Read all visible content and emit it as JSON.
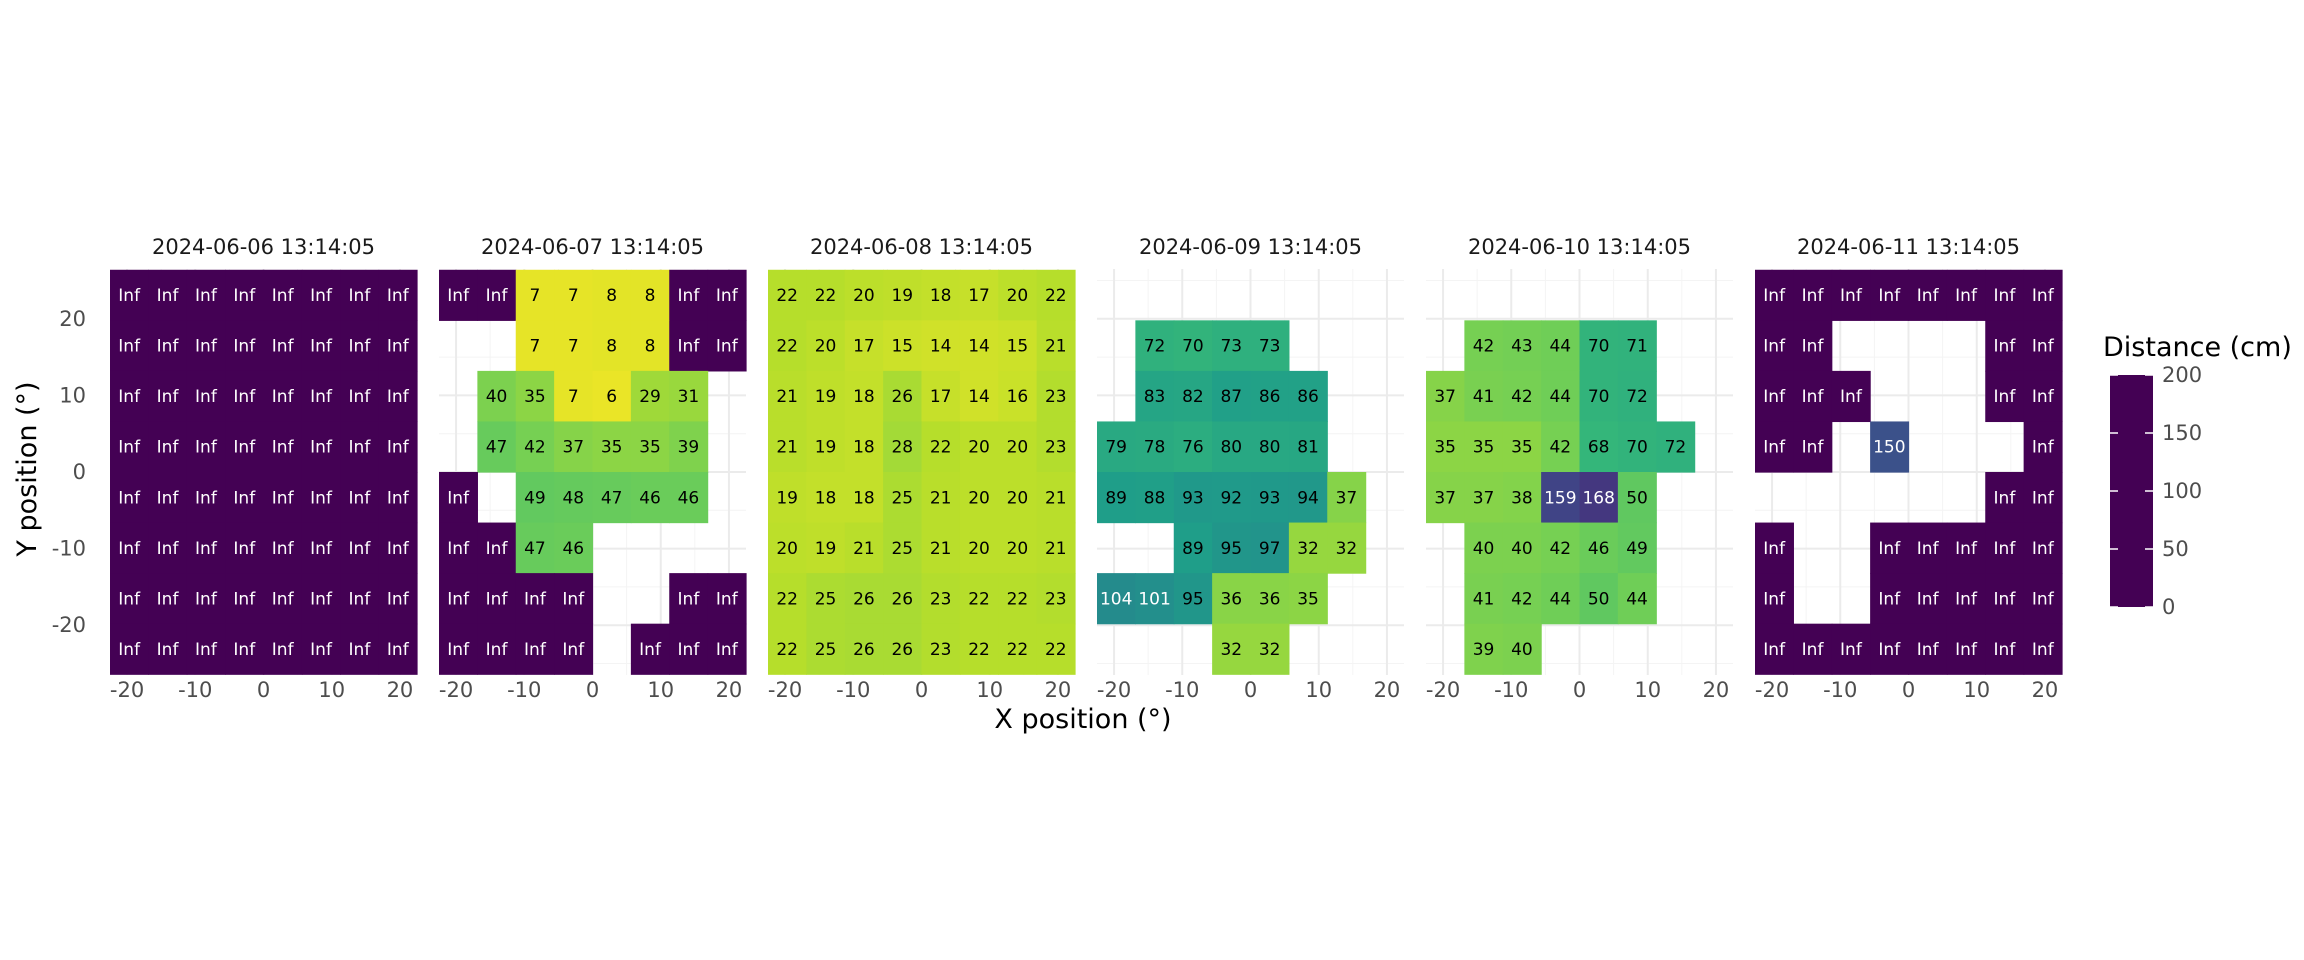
{
  "chart_data": {
    "type": "heatmap",
    "xlabel": "X position (°)",
    "ylabel": "Y position (°)",
    "xlim": [
      -22.5,
      22.5
    ],
    "ylim": [
      -26.5,
      26.5
    ],
    "x_ticks": [
      -20,
      -10,
      0,
      10,
      20
    ],
    "y_ticks": [
      20,
      10,
      0,
      -10,
      -20
    ],
    "x_tick_labels": [
      "-20",
      "-10",
      "0",
      "10",
      "20"
    ],
    "y_tick_labels": [
      "20",
      "10",
      "0",
      "-10",
      "-20"
    ],
    "x_values": [
      -19.6875,
      -14.0625,
      -8.4375,
      -2.8125,
      2.8125,
      8.4375,
      14.0625,
      19.6875
    ],
    "y_values": [
      23.1,
      16.5,
      9.9,
      3.3,
      -3.3,
      -9.9,
      -16.5,
      -23.1
    ],
    "legend": {
      "title": "Distance (cm)",
      "min": 0,
      "max": 200,
      "ticks": [
        "200",
        "150",
        "100",
        "50",
        "0"
      ],
      "placement": "right",
      "colors": [
        "#440154",
        "#482878",
        "#3e4989",
        "#31688e",
        "#26828e",
        "#1f9e89",
        "#35b779",
        "#6ece58",
        "#b5de2b",
        "#fde725"
      ],
      "infinite_color": "#440154"
    },
    "panels": [
      {
        "title": "2024-06-06 13:14:05",
        "grid": [
          [
            "Inf",
            "Inf",
            "Inf",
            "Inf",
            "Inf",
            "Inf",
            "Inf",
            "Inf"
          ],
          [
            "Inf",
            "Inf",
            "Inf",
            "Inf",
            "Inf",
            "Inf",
            "Inf",
            "Inf"
          ],
          [
            "Inf",
            "Inf",
            "Inf",
            "Inf",
            "Inf",
            "Inf",
            "Inf",
            "Inf"
          ],
          [
            "Inf",
            "Inf",
            "Inf",
            "Inf",
            "Inf",
            "Inf",
            "Inf",
            "Inf"
          ],
          [
            "Inf",
            "Inf",
            "Inf",
            "Inf",
            "Inf",
            "Inf",
            "Inf",
            "Inf"
          ],
          [
            "Inf",
            "Inf",
            "Inf",
            "Inf",
            "Inf",
            "Inf",
            "Inf",
            "Inf"
          ],
          [
            "Inf",
            "Inf",
            "Inf",
            "Inf",
            "Inf",
            "Inf",
            "Inf",
            "Inf"
          ],
          [
            "Inf",
            "Inf",
            "Inf",
            "Inf",
            "Inf",
            "Inf",
            "Inf",
            "Inf"
          ]
        ]
      },
      {
        "title": "2024-06-07 13:14:05",
        "grid": [
          [
            "Inf",
            "Inf",
            "7",
            "7",
            "8",
            "8",
            "Inf",
            "Inf"
          ],
          [
            null,
            null,
            "7",
            "7",
            "8",
            "8",
            "Inf",
            "Inf"
          ],
          [
            null,
            "40",
            "35",
            "7",
            "6",
            "29",
            "31",
            null
          ],
          [
            null,
            "47",
            "42",
            "37",
            "35",
            "35",
            "39",
            null
          ],
          [
            "Inf",
            null,
            "49",
            "48",
            "47",
            "46",
            "46",
            null
          ],
          [
            "Inf",
            "Inf",
            "47",
            "46",
            null,
            null,
            null,
            null
          ],
          [
            "Inf",
            "Inf",
            "Inf",
            "Inf",
            null,
            null,
            "Inf",
            "Inf"
          ],
          [
            "Inf",
            "Inf",
            "Inf",
            "Inf",
            null,
            "Inf",
            "Inf",
            "Inf"
          ]
        ]
      },
      {
        "title": "2024-06-08 13:14:05",
        "grid": [
          [
            "22",
            "22",
            "20",
            "19",
            "18",
            "17",
            "20",
            "22"
          ],
          [
            "22",
            "20",
            "17",
            "15",
            "14",
            "14",
            "15",
            "21"
          ],
          [
            "21",
            "19",
            "18",
            "26",
            "17",
            "14",
            "16",
            "23"
          ],
          [
            "21",
            "19",
            "18",
            "28",
            "22",
            "20",
            "20",
            "23"
          ],
          [
            "19",
            "18",
            "18",
            "25",
            "21",
            "20",
            "20",
            "21"
          ],
          [
            "20",
            "19",
            "21",
            "25",
            "21",
            "20",
            "20",
            "21"
          ],
          [
            "22",
            "25",
            "26",
            "26",
            "23",
            "22",
            "22",
            "23"
          ],
          [
            "22",
            "25",
            "26",
            "26",
            "23",
            "22",
            "22",
            "22"
          ]
        ]
      },
      {
        "title": "2024-06-09 13:14:05",
        "grid": [
          [
            null,
            null,
            null,
            null,
            null,
            null,
            null,
            null
          ],
          [
            null,
            "72",
            "70",
            "73",
            "73",
            null,
            null,
            null
          ],
          [
            null,
            "83",
            "82",
            "87",
            "86",
            "86",
            null,
            null
          ],
          [
            "79",
            "78",
            "76",
            "80",
            "80",
            "81",
            null,
            null
          ],
          [
            "89",
            "88",
            "93",
            "92",
            "93",
            "94",
            "37",
            null
          ],
          [
            null,
            null,
            "89",
            "95",
            "97",
            "32",
            "32",
            null
          ],
          [
            "104",
            "101",
            "95",
            "36",
            "36",
            "35",
            null,
            null
          ],
          [
            null,
            null,
            null,
            "32",
            "32",
            null,
            null,
            null
          ]
        ]
      },
      {
        "title": "2024-06-10 13:14:05",
        "grid": [
          [
            null,
            null,
            null,
            null,
            null,
            null,
            null,
            null
          ],
          [
            null,
            "42",
            "43",
            "44",
            "70",
            "71",
            null,
            null
          ],
          [
            "37",
            "41",
            "42",
            "44",
            "70",
            "72",
            null,
            null
          ],
          [
            "35",
            "35",
            "35",
            "42",
            "68",
            "70",
            "72",
            null
          ],
          [
            "37",
            "37",
            "38",
            "159",
            "168",
            "50",
            null,
            null
          ],
          [
            null,
            "40",
            "40",
            "42",
            "46",
            "49",
            null,
            null
          ],
          [
            null,
            "41",
            "42",
            "44",
            "50",
            "44",
            null,
            null
          ],
          [
            null,
            "39",
            "40",
            null,
            null,
            null,
            null,
            null
          ]
        ]
      },
      {
        "title": "2024-06-11 13:14:05",
        "grid": [
          [
            "Inf",
            "Inf",
            "Inf",
            "Inf",
            "Inf",
            "Inf",
            "Inf",
            "Inf"
          ],
          [
            "Inf",
            "Inf",
            null,
            null,
            null,
            null,
            "Inf",
            "Inf"
          ],
          [
            "Inf",
            "Inf",
            "Inf",
            null,
            null,
            null,
            "Inf",
            "Inf"
          ],
          [
            "Inf",
            "Inf",
            null,
            "150",
            null,
            null,
            null,
            "Inf"
          ],
          [
            null,
            null,
            null,
            null,
            null,
            null,
            "Inf",
            "Inf"
          ],
          [
            "Inf",
            null,
            null,
            "Inf",
            "Inf",
            "Inf",
            "Inf",
            "Inf"
          ],
          [
            "Inf",
            null,
            null,
            "Inf",
            "Inf",
            "Inf",
            "Inf",
            "Inf"
          ],
          [
            "Inf",
            "Inf",
            "Inf",
            "Inf",
            "Inf",
            "Inf",
            "Inf",
            "Inf"
          ]
        ]
      }
    ]
  }
}
